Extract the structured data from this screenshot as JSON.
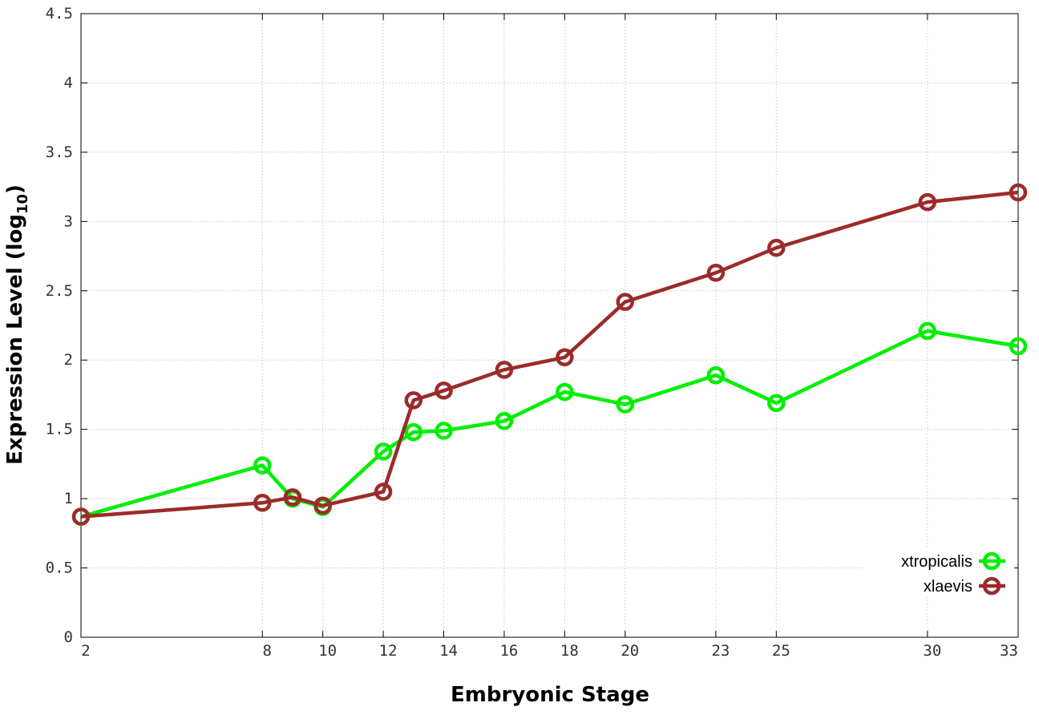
{
  "chart_data": {
    "type": "line",
    "xlabel": "Embryonic Stage",
    "ylabel_main": "Expression Level (log",
    "ylabel_sub": "10",
    "ylabel_close": ")",
    "x_ticks": [
      2,
      8,
      10,
      12,
      14,
      16,
      18,
      20,
      23,
      25,
      30,
      33
    ],
    "x_tick_labels": [
      "2",
      "8",
      "10",
      "12",
      "14",
      "16",
      "18",
      "20",
      "23",
      "25",
      "30",
      "33"
    ],
    "y_ticks": [
      0,
      0.5,
      1,
      1.5,
      2,
      2.5,
      3,
      3.5,
      4,
      4.5
    ],
    "y_tick_labels": [
      "0",
      "0.5",
      "1",
      "1.5",
      "2",
      "2.5",
      "3",
      "3.5",
      "4",
      "4.5"
    ],
    "xlim": [
      2,
      33
    ],
    "ylim": [
      0,
      4.5
    ],
    "grid": true,
    "legend_position": "bottom-right",
    "x": [
      2,
      8,
      9,
      10,
      12,
      13,
      14,
      16,
      18,
      20,
      23,
      25,
      30,
      33
    ],
    "series": [
      {
        "name": "xtropicalis",
        "color": "#00ee00",
        "values": [
          0.87,
          1.24,
          1.0,
          0.94,
          1.34,
          1.48,
          1.49,
          1.56,
          1.77,
          1.68,
          1.89,
          1.69,
          2.21,
          2.1
        ]
      },
      {
        "name": "xlaevis",
        "color": "#9b2b2b",
        "values": [
          0.87,
          0.97,
          1.01,
          0.95,
          1.05,
          1.71,
          1.78,
          1.93,
          2.02,
          2.42,
          2.63,
          2.81,
          3.14,
          3.21
        ]
      }
    ]
  }
}
